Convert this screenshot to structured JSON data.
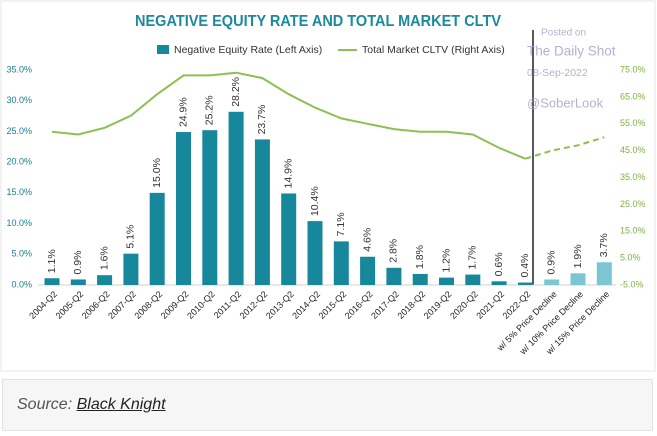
{
  "chart_data": {
    "type": "bar",
    "title": "NEGATIVE EQUITY RATE AND TOTAL MARKET CLTV",
    "categories": [
      "2004-Q2",
      "2005-Q2",
      "2006-Q2",
      "2007-Q2",
      "2008-Q2",
      "2009-Q2",
      "2010-Q2",
      "2011-Q2",
      "2012-Q2",
      "2013-Q2",
      "2014-Q2",
      "2015-Q2",
      "2016-Q2",
      "2017-Q2",
      "2018-Q2",
      "2019-Q2",
      "2020-Q2",
      "2021-Q2",
      "2022-Q2",
      "w/ 5% Price Decline",
      "w/ 10% Price Decline",
      "w/ 15% Price Decline"
    ],
    "series": [
      {
        "name": "Negative Equity Rate (Left Axis)",
        "type": "bar",
        "color": "#17879b",
        "projection_color": "#7cc5d2",
        "values": [
          1.1,
          0.9,
          1.6,
          5.1,
          15.0,
          24.9,
          25.2,
          28.2,
          23.7,
          14.9,
          10.4,
          7.1,
          4.6,
          2.8,
          1.8,
          1.2,
          1.7,
          0.6,
          0.4,
          0.9,
          1.9,
          3.7
        ],
        "value_labels": [
          "1.1%",
          "0.9%",
          "1.6%",
          "5.1%",
          "15.0%",
          "24.9%",
          "25.2%",
          "28.2%",
          "23.7%",
          "14.9%",
          "10.4%",
          "7.1%",
          "4.6%",
          "2.8%",
          "1.8%",
          "1.2%",
          "1.7%",
          "0.6%",
          "0.4%",
          "0.9%",
          "1.9%",
          "3.7%"
        ]
      },
      {
        "name": "Total Market CLTV (Right Axis)",
        "type": "line",
        "color": "#8cc152",
        "axis": "y2",
        "values": [
          52,
          51,
          53.5,
          58,
          66,
          73,
          73,
          74,
          72,
          66,
          61,
          57,
          55,
          53,
          52,
          52,
          51,
          46,
          42,
          45,
          47,
          50
        ]
      }
    ],
    "projection_start": 19,
    "ylim": [
      0,
      35
    ],
    "yticks": [
      {
        "value": 0,
        "label": "0.0%"
      },
      {
        "value": 5,
        "label": "5.0%"
      },
      {
        "value": 10,
        "label": "10.0%"
      },
      {
        "value": 15,
        "label": "15.0%"
      },
      {
        "value": 20,
        "label": "20.0%"
      },
      {
        "value": 25,
        "label": "25.0%"
      },
      {
        "value": 30,
        "label": "30.0%"
      },
      {
        "value": 35,
        "label": "35.0%"
      }
    ],
    "y2lim": [
      -5,
      75
    ],
    "y2ticks": [
      {
        "value": -5,
        "label": "-5.0%"
      },
      {
        "value": 5,
        "label": "5.0%"
      },
      {
        "value": 15,
        "label": "15.0%"
      },
      {
        "value": 25,
        "label": "25.0%"
      },
      {
        "value": 35,
        "label": "35.0%"
      },
      {
        "value": 45,
        "label": "45.0%"
      },
      {
        "value": 55,
        "label": "55.0%"
      },
      {
        "value": 65,
        "label": "65.0%"
      },
      {
        "value": 75,
        "label": "75.0%"
      }
    ],
    "watermark": [
      "Posted on",
      "The Daily Shot",
      "08-Sep-2022",
      "@SoberLook"
    ]
  },
  "source": {
    "label": "Source:",
    "link": "Black Knight"
  }
}
